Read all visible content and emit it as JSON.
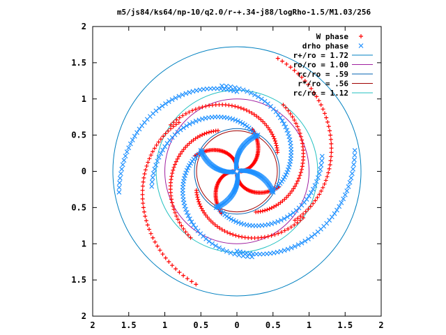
{
  "chart_data": {
    "type": "scatter",
    "title": "m5/js84/ks64/np-10/q2.0/r-+.34-j88/logRho-1.5/M1.03/256",
    "xlim": [
      -2,
      2
    ],
    "ylim": [
      -2,
      2
    ],
    "x_tick_labels": [
      "2",
      "1.5",
      "1",
      "0.5",
      "0",
      "0.5",
      "1",
      "1.5",
      "2"
    ],
    "y_tick_labels": [
      "2",
      "1.5",
      "1",
      "0.5",
      "0",
      "0.5",
      "1",
      "1.5",
      "2"
    ],
    "legend_position": "top-right",
    "grid": false,
    "series": [
      {
        "name": "W phase",
        "marker": "plus",
        "color": "#ff0000",
        "arms": [
          {
            "theta0_deg": 0,
            "rin": 0.05,
            "rout": 0.62,
            "twist_deg": 70
          },
          {
            "theta0_deg": 90,
            "rin": 0.05,
            "rout": 0.62,
            "twist_deg": 70
          },
          {
            "theta0_deg": 180,
            "rin": 0.05,
            "rout": 0.62,
            "twist_deg": 70
          },
          {
            "theta0_deg": 270,
            "rin": 0.05,
            "rout": 0.62,
            "twist_deg": 70
          },
          {
            "theta0_deg": 25,
            "rin": 0.62,
            "rout": 1.12,
            "twist_deg": 120
          },
          {
            "theta0_deg": 115,
            "rin": 0.62,
            "rout": 1.12,
            "twist_deg": 120
          },
          {
            "theta0_deg": 205,
            "rin": 0.62,
            "rout": 1.12,
            "twist_deg": 120
          },
          {
            "theta0_deg": 295,
            "rin": 0.62,
            "rout": 1.12,
            "twist_deg": 120
          },
          {
            "theta0_deg": 140,
            "rin": 1.05,
            "rout": 1.66,
            "twist_deg": 110
          },
          {
            "theta0_deg": 320,
            "rin": 1.05,
            "rout": 1.66,
            "twist_deg": 110
          }
        ]
      },
      {
        "name": "drho phase",
        "marker": "cross",
        "color": "#1e90ff",
        "arms": [
          {
            "theta0_deg": 10,
            "rin": 0.04,
            "rout": 0.58,
            "twist_deg": -40
          },
          {
            "theta0_deg": 100,
            "rin": 0.04,
            "rout": 0.58,
            "twist_deg": -40
          },
          {
            "theta0_deg": 190,
            "rin": 0.04,
            "rout": 0.58,
            "twist_deg": -40
          },
          {
            "theta0_deg": 280,
            "rin": 0.04,
            "rout": 0.58,
            "twist_deg": -40
          },
          {
            "theta0_deg": 60,
            "rin": 0.55,
            "rout": 1.2,
            "twist_deg": 130
          },
          {
            "theta0_deg": 150,
            "rin": 0.55,
            "rout": 1.2,
            "twist_deg": 130
          },
          {
            "theta0_deg": 240,
            "rin": 0.55,
            "rout": 1.2,
            "twist_deg": 130
          },
          {
            "theta0_deg": 330,
            "rin": 0.55,
            "rout": 1.2,
            "twist_deg": 130
          },
          {
            "theta0_deg": 90,
            "rin": 1.1,
            "rout": 1.66,
            "twist_deg": 100
          },
          {
            "theta0_deg": 270,
            "rin": 1.1,
            "rout": 1.66,
            "twist_deg": 100
          }
        ]
      }
    ],
    "circles": [
      {
        "name": "r+/ro = 1.72",
        "r": 1.72,
        "color": "#0080c0"
      },
      {
        "name": "ro/ro = 1.00",
        "r": 1.0,
        "color": "#a020a0"
      },
      {
        "name": "rc/ro = .59",
        "r": 0.59,
        "color": "#0060b0"
      },
      {
        "name": "r*/ro = .56",
        "r": 0.56,
        "color": "#a00000"
      },
      {
        "name": "rc/ro = 1.12",
        "r": 1.12,
        "color": "#20c0c0"
      }
    ]
  }
}
